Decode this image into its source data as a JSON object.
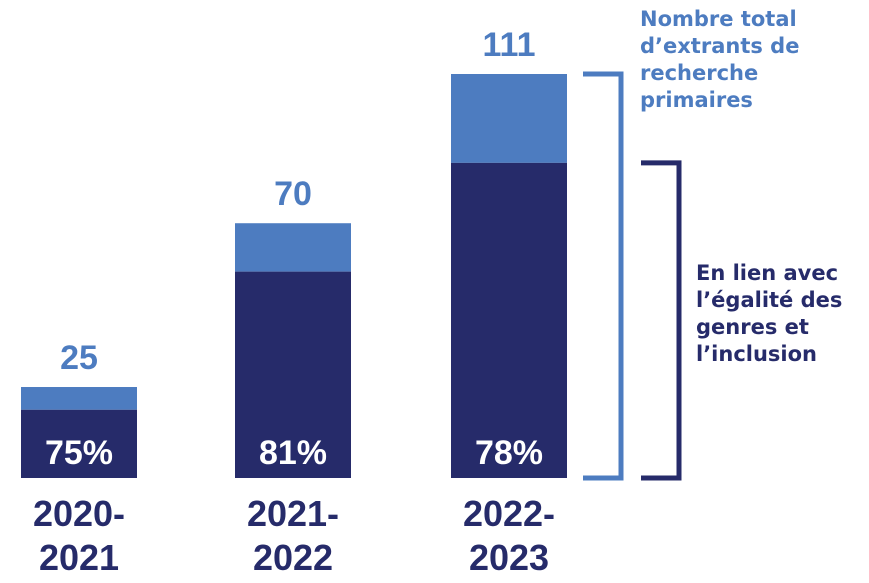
{
  "chart_data": {
    "type": "bar",
    "stacked": true,
    "categories": [
      "2020-\n2021",
      "2021-\n2022",
      "2022-\n2023"
    ],
    "totals": [
      25,
      70,
      111
    ],
    "gender_inclusion_percent": [
      75,
      81,
      78
    ],
    "total_labels": [
      "25",
      "70",
      "111"
    ],
    "percent_labels": [
      "75%",
      "81%",
      "78%"
    ],
    "ylim": [
      0,
      111
    ]
  },
  "annotations": {
    "total": "Nombre total d’extrants de recherche primaires",
    "gender": "En lien avec l’égalité des genres et l’inclusion"
  },
  "colors": {
    "light_bar": "#4d7cc0",
    "dark_bar": "#262b6a",
    "total_text": "#4d7cc0",
    "category_text": "#262b6a"
  }
}
